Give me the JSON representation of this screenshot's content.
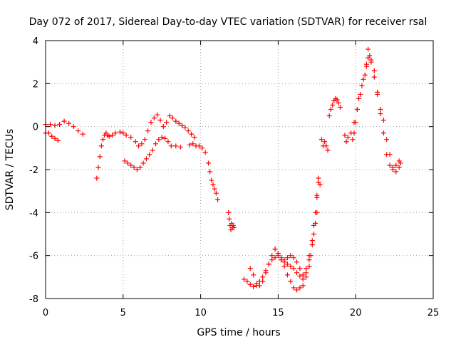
{
  "chart_data": {
    "type": "scatter",
    "title": "Day 072 of 2017, Sidereal Day-to-day VTEC variation (SDTVAR) for receiver rsal",
    "xlabel": "GPS time / hours",
    "ylabel": "SDTVAR / TECUs",
    "xlim": [
      0,
      25
    ],
    "ylim": [
      -8,
      4
    ],
    "xticks": [
      0,
      5,
      10,
      15,
      20,
      25
    ],
    "yticks": [
      -8,
      -6,
      -4,
      -2,
      0,
      2,
      4
    ],
    "grid": true,
    "legend": "none",
    "marker": "+",
    "color": "#ff0000",
    "series": [
      {
        "x": [
          0.0,
          0.3,
          0.6,
          0.9,
          1.2,
          1.5,
          1.8,
          2.1,
          2.4
        ],
        "y": [
          0.1,
          0.1,
          0.05,
          0.1,
          0.25,
          0.15,
          0.0,
          -0.2,
          -0.35
        ]
      },
      {
        "x": [
          0.0,
          0.2,
          0.4,
          0.6,
          0.8
        ],
        "y": [
          -0.3,
          -0.3,
          -0.45,
          -0.55,
          -0.65
        ]
      },
      {
        "x": [
          3.3,
          3.4,
          3.5,
          3.6,
          3.7,
          3.8,
          3.9,
          4.0,
          4.1,
          4.3,
          4.5,
          4.8,
          5.0,
          5.2,
          5.5,
          5.8,
          6.0,
          6.2,
          6.4,
          6.6,
          6.8,
          7.0,
          7.2,
          7.4,
          7.6,
          7.8,
          8.0,
          8.2,
          8.4,
          8.6,
          8.8,
          9.0,
          9.2,
          9.4,
          9.6
        ],
        "y": [
          -2.4,
          -1.9,
          -1.4,
          -0.9,
          -0.6,
          -0.4,
          -0.3,
          -0.4,
          -0.45,
          -0.4,
          -0.3,
          -0.25,
          -0.3,
          -0.4,
          -0.5,
          -0.7,
          -0.9,
          -0.8,
          -0.6,
          -0.2,
          0.2,
          0.4,
          0.55,
          0.3,
          0.0,
          0.2,
          0.5,
          0.4,
          0.25,
          0.15,
          0.05,
          -0.05,
          -0.2,
          -0.35,
          -0.5
        ]
      },
      {
        "x": [
          5.1,
          5.3,
          5.5,
          5.7,
          5.9,
          6.1,
          6.3,
          6.5,
          6.7,
          6.9,
          7.1,
          7.3,
          7.5,
          7.7,
          7.9,
          8.1,
          8.4,
          8.7
        ],
        "y": [
          -1.6,
          -1.7,
          -1.8,
          -1.9,
          -2.0,
          -1.9,
          -1.7,
          -1.5,
          -1.3,
          -1.1,
          -0.8,
          -0.6,
          -0.5,
          -0.55,
          -0.7,
          -0.9,
          -0.9,
          -0.95
        ]
      },
      {
        "x": [
          9.3,
          9.5,
          9.7,
          9.9,
          10.1,
          10.3,
          10.5,
          10.6,
          10.7,
          10.8,
          10.9,
          11.0,
          11.1
        ],
        "y": [
          -0.85,
          -0.8,
          -0.9,
          -0.9,
          -1.0,
          -1.2,
          -1.7,
          -2.1,
          -2.5,
          -2.7,
          -2.9,
          -3.1,
          -3.4
        ]
      },
      {
        "x": [
          11.8,
          11.85,
          11.9,
          11.95,
          12.0,
          12.05,
          12.1,
          12.15
        ],
        "y": [
          -4.0,
          -4.3,
          -4.6,
          -4.8,
          -4.5,
          -4.7,
          -4.6,
          -4.7
        ]
      },
      {
        "x": [
          12.8,
          13.0,
          13.2,
          13.4,
          13.6,
          13.8,
          14.0,
          14.2,
          14.4,
          14.6,
          14.8,
          15.0,
          15.2,
          15.4,
          15.6,
          15.8,
          16.0,
          16.2,
          16.4,
          16.6,
          16.8,
          17.0,
          17.1,
          17.2,
          17.3,
          17.4,
          17.5
        ],
        "y": [
          -7.1,
          -7.2,
          -7.35,
          -7.45,
          -7.4,
          -7.2,
          -7.0,
          -6.7,
          -6.4,
          -6.2,
          -6.1,
          -6.0,
          -6.2,
          -6.3,
          -6.4,
          -6.5,
          -6.6,
          -6.8,
          -6.95,
          -7.1,
          -6.8,
          -6.5,
          -6.0,
          -5.5,
          -5.0,
          -4.5,
          -4.0
        ]
      },
      {
        "x": [
          13.2,
          13.4,
          13.6,
          13.8,
          14.0,
          14.2,
          14.4,
          14.6,
          14.8,
          15.0,
          15.2,
          15.4,
          15.6,
          15.8,
          16.0,
          16.2,
          16.4,
          16.6,
          16.8,
          17.0,
          17.2,
          17.3,
          17.4,
          17.5,
          17.6,
          17.7
        ],
        "y": [
          -6.6,
          -6.9,
          -7.3,
          -7.4,
          -7.2,
          -6.8,
          -6.4,
          -6.0,
          -5.7,
          -5.9,
          -6.2,
          -6.5,
          -6.9,
          -7.2,
          -7.5,
          -7.6,
          -7.5,
          -7.4,
          -7.0,
          -6.0,
          -5.3,
          -4.6,
          -4.0,
          -3.2,
          -2.6,
          -2.7
        ]
      },
      {
        "x": [
          14.8,
          15.0,
          15.2,
          15.4,
          15.6,
          15.8,
          16.0,
          16.2,
          16.4,
          16.6,
          16.8,
          17.0,
          17.2,
          17.4,
          17.5,
          17.6
        ],
        "y": [
          -5.7,
          -5.9,
          -6.1,
          -6.2,
          -6.1,
          -6.0,
          -6.1,
          -6.3,
          -6.6,
          -6.9,
          -6.6,
          -6.2,
          -5.5,
          -4.5,
          -3.3,
          -2.4
        ]
      },
      {
        "x": [
          17.8,
          17.9,
          18.0,
          18.1,
          18.2
        ],
        "y": [
          -0.6,
          -0.9,
          -0.7,
          -0.9,
          -1.1
        ]
      },
      {
        "x": [
          18.3,
          18.4,
          18.5,
          18.6,
          18.7,
          18.8,
          18.9,
          19.0
        ],
        "y": [
          0.5,
          0.8,
          1.0,
          1.2,
          1.3,
          1.25,
          1.1,
          0.9
        ]
      },
      {
        "x": [
          19.3,
          19.4,
          19.5,
          19.7,
          19.9,
          20.1,
          20.3,
          20.5,
          20.7,
          20.8,
          20.9,
          21.0,
          21.2,
          21.4,
          21.6,
          21.8,
          22.0,
          22.2,
          22.4,
          22.6,
          22.8
        ],
        "y": [
          -0.4,
          -0.7,
          -0.5,
          -0.3,
          0.2,
          0.8,
          1.5,
          2.2,
          2.8,
          3.2,
          3.3,
          3.0,
          2.3,
          1.5,
          0.6,
          -0.3,
          -1.3,
          -1.8,
          -2.0,
          -1.8,
          -1.6
        ]
      },
      {
        "x": [
          19.8,
          19.9,
          20.0,
          20.1,
          20.2,
          20.4,
          20.6,
          20.7,
          20.8,
          21.0,
          21.2,
          21.4,
          21.6,
          21.8,
          22.0,
          22.2,
          22.4,
          22.6,
          22.8,
          22.9
        ],
        "y": [
          -0.6,
          -0.3,
          0.2,
          0.8,
          1.3,
          1.9,
          2.4,
          2.9,
          3.6,
          3.1,
          2.6,
          1.6,
          0.8,
          0.3,
          -0.6,
          -1.3,
          -1.9,
          -2.1,
          -1.9,
          -1.7
        ]
      }
    ]
  }
}
